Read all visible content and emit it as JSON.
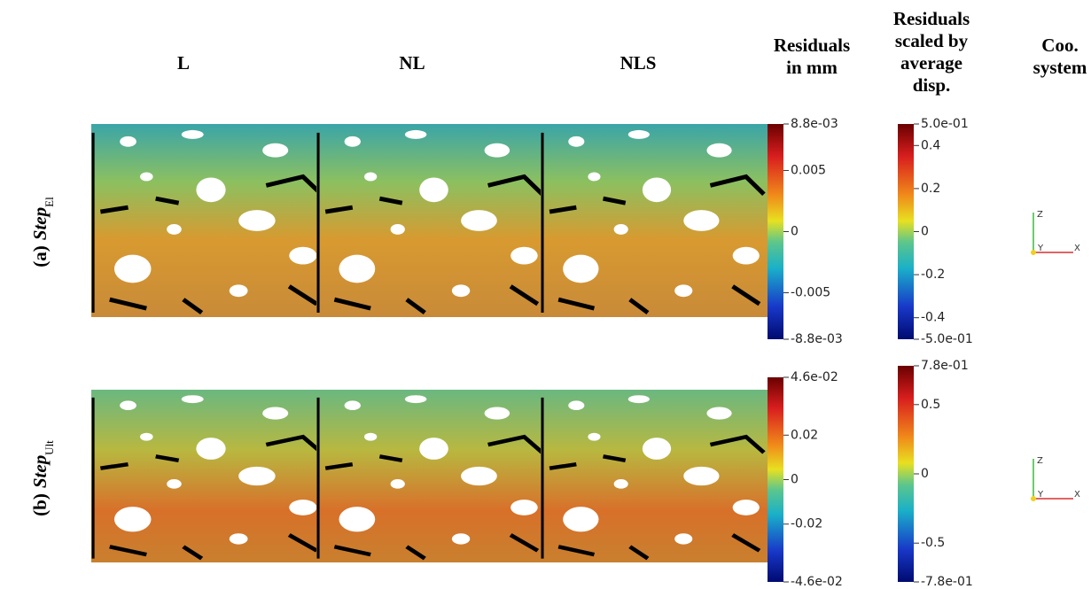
{
  "columns": [
    "L",
    "NL",
    "NLS"
  ],
  "legend_headers": [
    [
      "Residuals",
      "in mm"
    ],
    [
      "Residuals",
      "scaled by",
      "average",
      "disp."
    ],
    [
      "Coo.",
      "system"
    ]
  ],
  "rows": [
    {
      "prefix": "(a)",
      "label": "Step",
      "subscript": "El",
      "colorbars": [
        {
          "range": [
            -0.0088,
            0.0088
          ],
          "ticks": [
            {
              "value": 0.0088,
              "label": "8.8e-03"
            },
            0.005,
            0,
            -0.005,
            {
              "value": -0.0088,
              "label": "-8.8e-03"
            }
          ]
        },
        {
          "range": [
            -0.5,
            0.5
          ],
          "ticks": [
            {
              "value": 0.5,
              "label": "5.0e-01"
            },
            0.4,
            0.2,
            0,
            -0.2,
            -0.4,
            {
              "value": -0.5,
              "label": "-5.0e-01"
            }
          ]
        }
      ],
      "axes": [
        "Z",
        "Y",
        "X"
      ]
    },
    {
      "prefix": "(b)",
      "label": "Step",
      "subscript": "Ult",
      "colorbars": [
        {
          "range": [
            -0.046,
            0.046
          ],
          "ticks": [
            {
              "value": 0.046,
              "label": "4.6e-02"
            },
            0.02,
            0,
            -0.02,
            {
              "value": -0.046,
              "label": "-4.6e-02"
            }
          ]
        },
        {
          "range": [
            -0.78,
            0.78
          ],
          "ticks": [
            {
              "value": 0.78,
              "label": "7.8e-01"
            },
            0.5,
            0,
            -0.5,
            {
              "value": -0.78,
              "label": "-7.8e-01"
            }
          ]
        }
      ],
      "axes": [
        "Z",
        "Y",
        "X"
      ]
    }
  ]
}
